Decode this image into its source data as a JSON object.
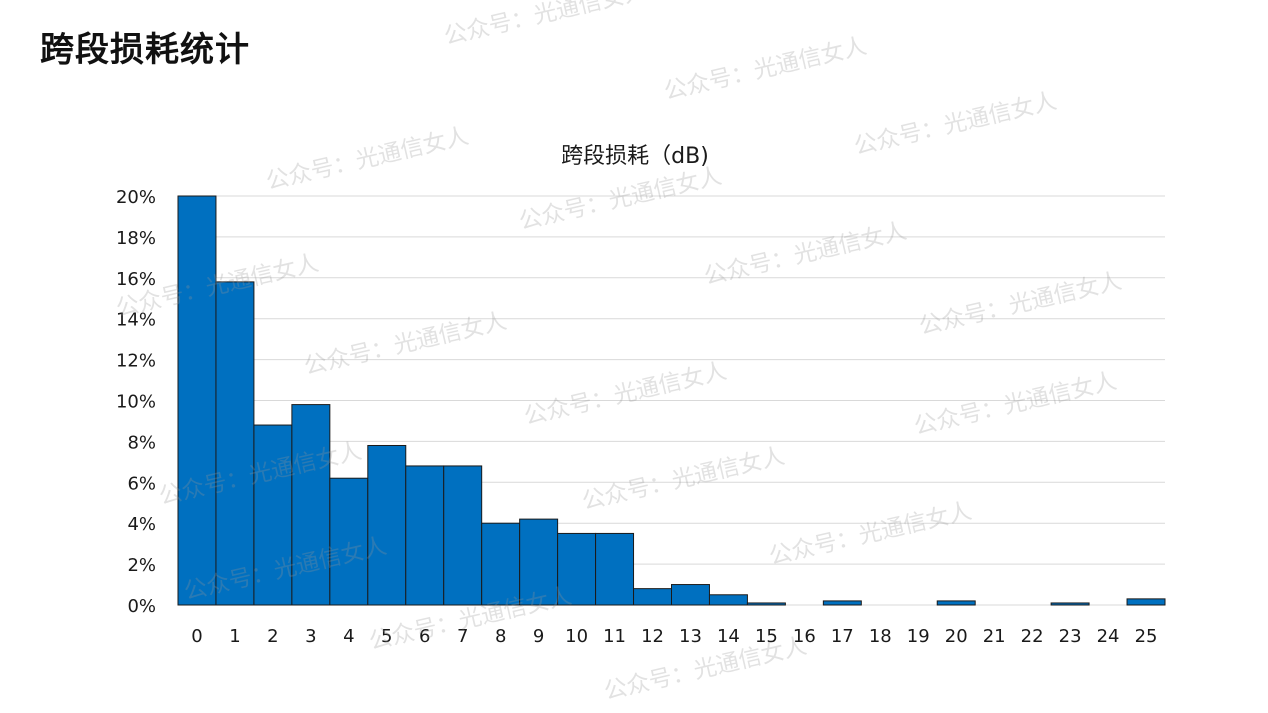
{
  "page": {
    "title": "跨段损耗统计"
  },
  "watermark": {
    "text": "公众号：光通信女人"
  },
  "chart_data": {
    "type": "bar",
    "title": "跨段损耗（dB)",
    "xlabel": "",
    "ylabel": "",
    "categories": [
      "0",
      "1",
      "2",
      "3",
      "4",
      "5",
      "6",
      "7",
      "8",
      "9",
      "10",
      "11",
      "12",
      "13",
      "14",
      "15",
      "16",
      "17",
      "18",
      "19",
      "20",
      "21",
      "22",
      "23",
      "24",
      "25"
    ],
    "values": [
      20.0,
      15.8,
      8.8,
      9.8,
      6.2,
      7.8,
      6.8,
      6.8,
      4.0,
      4.2,
      3.5,
      3.5,
      0.8,
      1.0,
      0.5,
      0.1,
      0.0,
      0.2,
      0.0,
      0.0,
      0.2,
      0.0,
      0.0,
      0.1,
      0.0,
      0.3
    ],
    "ylim": [
      0,
      20
    ],
    "y_ticks": [
      0,
      2,
      4,
      6,
      8,
      10,
      12,
      14,
      16,
      18,
      20
    ],
    "y_tick_labels": [
      "0%",
      "2%",
      "4%",
      "6%",
      "8%",
      "10%",
      "12%",
      "14%",
      "16%",
      "18%",
      "20%"
    ],
    "grid": true,
    "legend": "none",
    "bar_color": "#0070c0",
    "bar_edge_color": "#1a1a1a",
    "grid_color": "#d9d9d9"
  }
}
